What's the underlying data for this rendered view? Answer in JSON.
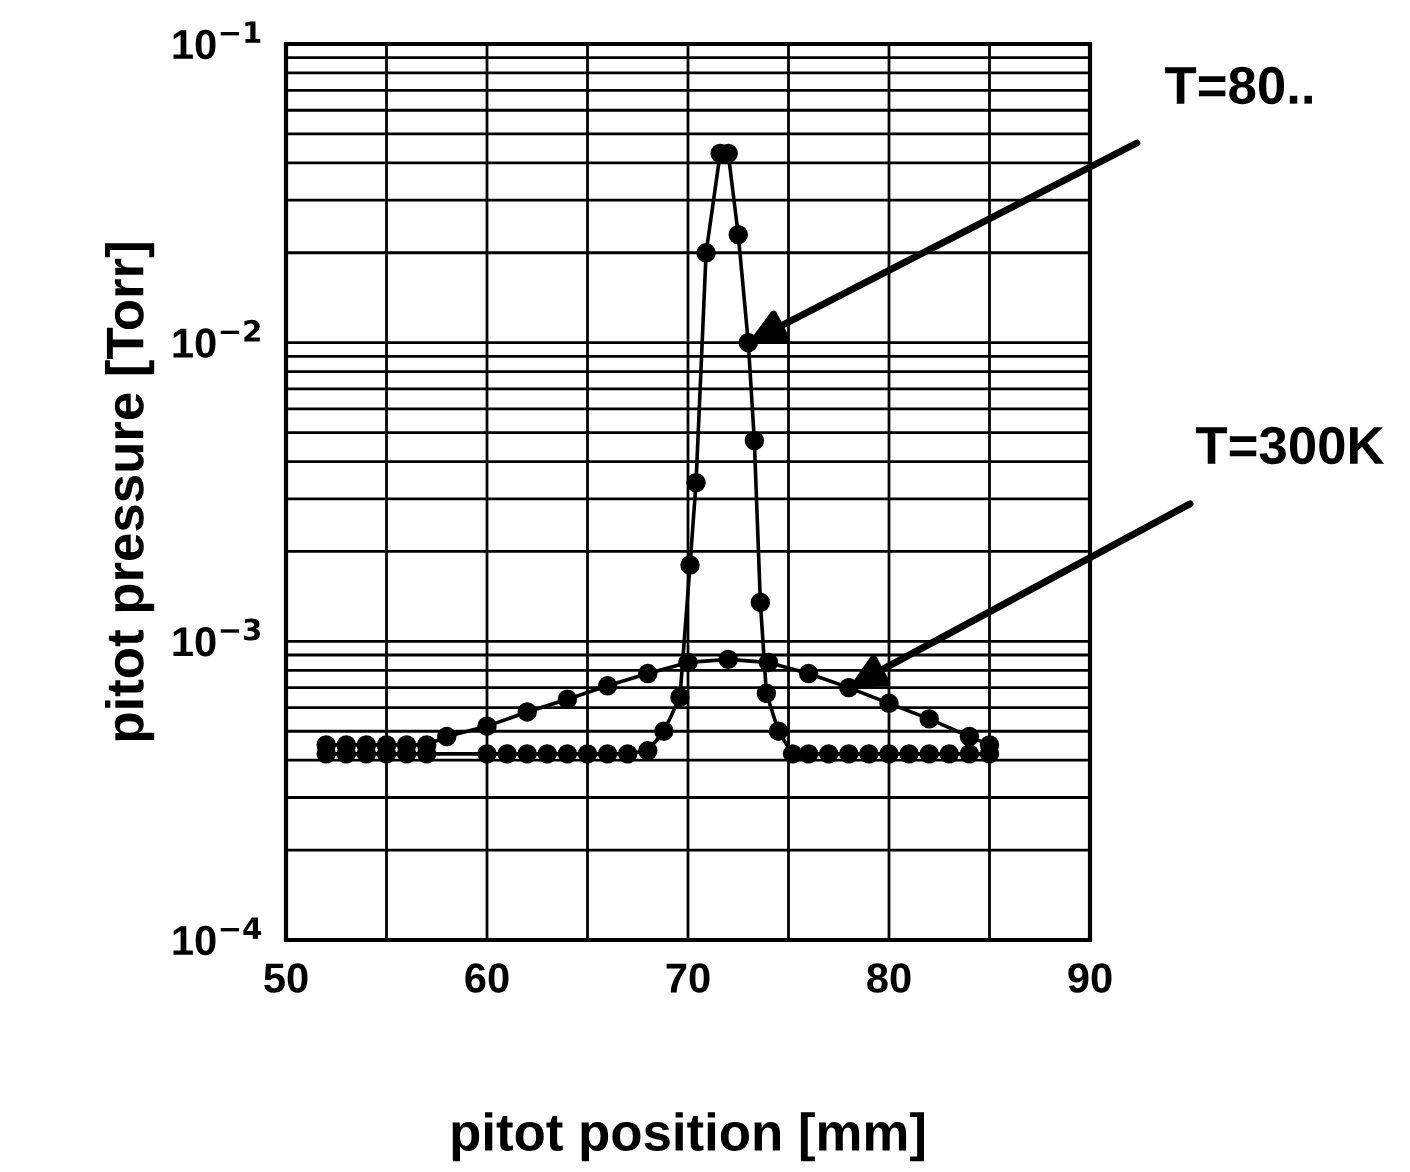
{
  "chart_data": {
    "type": "line",
    "xlabel": "pitot position [mm]",
    "ylabel": "pitot pressure [Torr]",
    "log": "y",
    "grid": true,
    "marker": "circle",
    "line_style": "solid",
    "xlim": [
      50,
      90
    ],
    "ylim": [
      0.0001,
      0.1
    ],
    "xticks": [
      50,
      {
        "value": 55,
        "label": null
      },
      60,
      {
        "value": 65,
        "label": null
      },
      70,
      {
        "value": 75,
        "label": null
      },
      80,
      {
        "value": 85,
        "label": null
      },
      90
    ],
    "yticks": [
      {
        "value": 0.0001,
        "label": "10$^{−4}$"
      },
      {
        "value": 0.0002,
        "label": null
      },
      {
        "value": 0.0003,
        "label": null
      },
      {
        "value": 0.0004,
        "label": null
      },
      {
        "value": 0.0005,
        "label": null
      },
      {
        "value": 0.0006,
        "label": null
      },
      {
        "value": 0.0007,
        "label": null
      },
      {
        "value": 0.0008,
        "label": null
      },
      {
        "value": 0.0009,
        "label": null
      },
      {
        "value": 0.001,
        "label": "10$^{−3}$"
      },
      {
        "value": 0.002,
        "label": null
      },
      {
        "value": 0.003,
        "label": null
      },
      {
        "value": 0.004,
        "label": null
      },
      {
        "value": 0.005,
        "label": null
      },
      {
        "value": 0.006,
        "label": null
      },
      {
        "value": 0.007,
        "label": null
      },
      {
        "value": 0.008,
        "label": null
      },
      {
        "value": 0.009,
        "label": null
      },
      {
        "value": 0.01,
        "label": "10$^{−2}$"
      },
      {
        "value": 0.02,
        "label": null
      },
      {
        "value": 0.03,
        "label": null
      },
      {
        "value": 0.04,
        "label": null
      },
      {
        "value": 0.05,
        "label": null
      },
      {
        "value": 0.06,
        "label": null
      },
      {
        "value": 0.07,
        "label": null
      },
      {
        "value": 0.08,
        "label": null
      },
      {
        "value": 0.09,
        "label": null
      },
      {
        "value": 0.1,
        "label": "10$^{−1}$"
      }
    ],
    "series": [
      {
        "color": "#000000",
        "x": [
          52,
          53,
          54,
          55,
          56,
          57,
          60,
          61,
          62,
          63,
          64,
          65,
          66,
          67,
          68,
          68.8,
          69.6,
          70.1,
          70.4,
          70.9,
          71.6,
          72.0,
          72.5,
          73.0,
          73.3,
          73.6,
          73.9,
          74.5,
          75.2,
          76,
          77,
          78,
          79,
          80,
          81,
          82,
          83,
          84,
          85
        ],
        "values": [
          0.00042,
          0.00042,
          0.00042,
          0.00042,
          0.00042,
          0.00042,
          0.00042,
          0.00042,
          0.00042,
          0.00042,
          0.00042,
          0.00042,
          0.00042,
          0.00042,
          0.00043,
          0.0005,
          0.00065,
          0.0018,
          0.0034,
          0.02,
          0.043,
          0.043,
          0.023,
          0.01,
          0.0047,
          0.00135,
          0.00067,
          0.0005,
          0.00042,
          0.00042,
          0.00042,
          0.00042,
          0.00042,
          0.00042,
          0.00042,
          0.00042,
          0.00042,
          0.00042,
          0.00042
        ]
      },
      {
        "color": "#000000",
        "x": [
          52,
          53,
          54,
          55,
          56,
          57,
          58,
          60,
          62,
          64,
          66,
          68,
          70,
          72,
          74,
          76,
          78,
          80,
          82,
          84,
          85
        ],
        "values": [
          0.00045,
          0.00045,
          0.00045,
          0.00045,
          0.00045,
          0.00045,
          0.00048,
          0.00052,
          0.00058,
          0.00064,
          0.00071,
          0.00078,
          0.00085,
          0.00087,
          0.00085,
          0.00078,
          0.0007,
          0.00062,
          0.00055,
          0.00048,
          0.00045
        ]
      }
    ],
    "annotations": [
      {
        "text": "T=80..",
        "x": 73.0,
        "y": 0.01
      },
      {
        "text": "T=300K",
        "x": 78,
        "y": 0.0007
      }
    ]
  }
}
